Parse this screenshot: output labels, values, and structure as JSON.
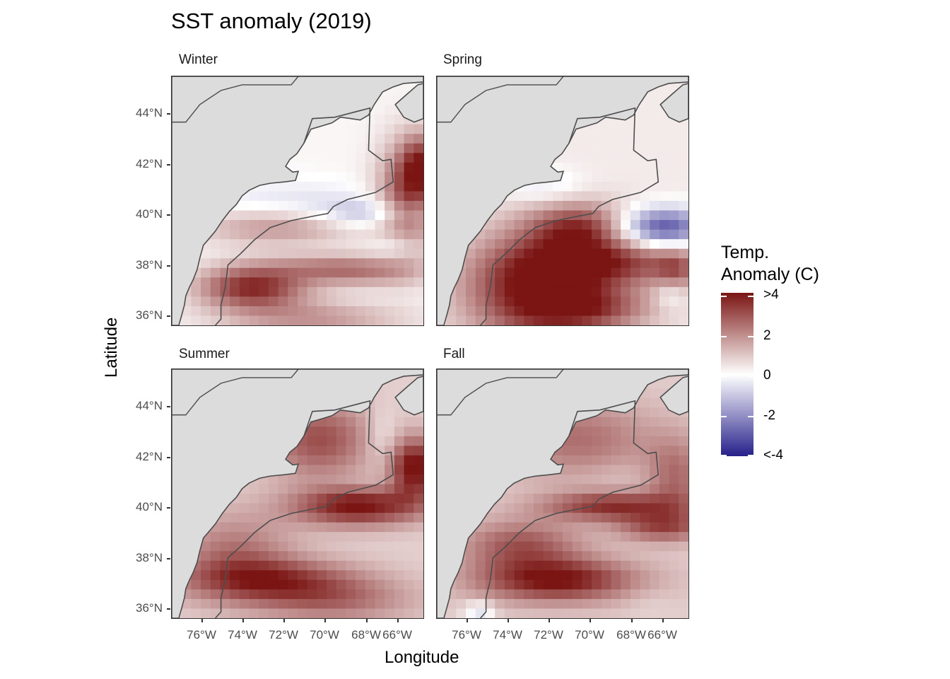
{
  "title": "SST anomaly (2019)",
  "axes": {
    "xlabel": "Longitude",
    "ylabel": "Latitude",
    "x_ticks": [
      "76°W",
      "74°W",
      "72°W",
      "70°W",
      "68°W",
      "66°W"
    ],
    "y_ticks": [
      "44°N",
      "42°N",
      "40°N",
      "38°N",
      "36°N"
    ]
  },
  "panels": [
    {
      "id": "winter",
      "label": "Winter"
    },
    {
      "id": "spring",
      "label": "Spring"
    },
    {
      "id": "summer",
      "label": "Summer"
    },
    {
      "id": "fall",
      "label": "Fall"
    }
  ],
  "legend": {
    "title_line1": "Temp.",
    "title_line2": "Anomaly (C)",
    "labels": [
      ">4",
      "2",
      "0",
      "-2",
      "<-4"
    ],
    "colors": {
      "high": "#7a1513",
      "mid": "#ffffff",
      "low": "#26208a",
      "land": "#dcdcdc"
    }
  }
}
